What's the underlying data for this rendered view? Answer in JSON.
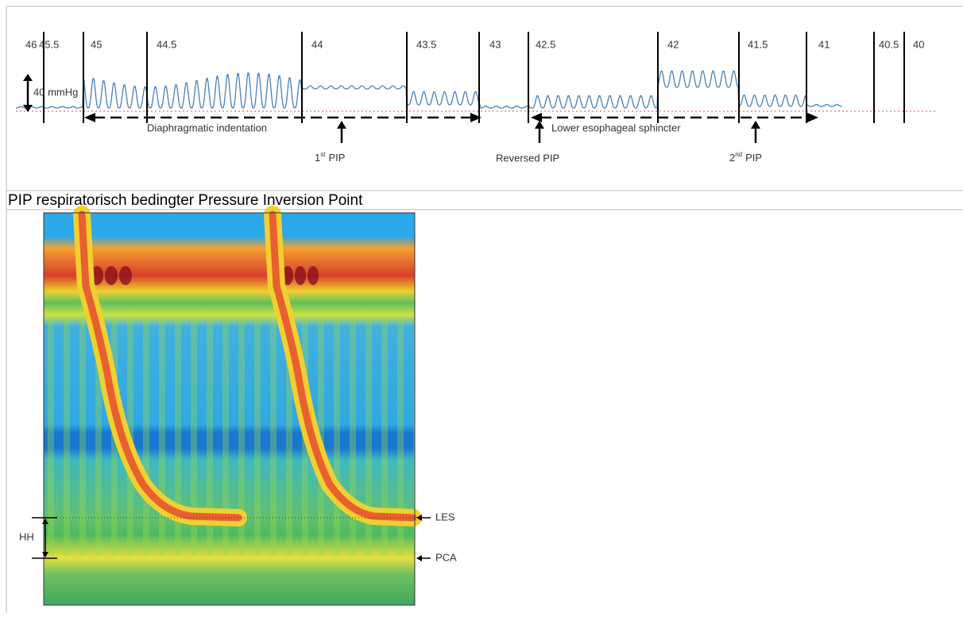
{
  "tracing": {
    "scale_labels": [
      "46",
      "45.5",
      "45",
      "44.5",
      "44",
      "43.5",
      "43",
      "42.5",
      "42",
      "41.5",
      "41",
      "40.5",
      "40"
    ],
    "amplitude_label": "40 mmHg",
    "annotations": {
      "diaphragmatic": "Diaphragmatic indentation",
      "les": "Lower esophageal sphincter",
      "first_pip": {
        "number": "1",
        "suffix": "st",
        "text": "PIP"
      },
      "reversed_pip": "Reversed PIP",
      "second_pip": {
        "number": "2",
        "suffix": "nd",
        "text": "PIP"
      }
    }
  },
  "caption": "PIP respiratorisch bedingter Pressure Inversion Point",
  "heatmap": {
    "labels": {
      "les": "LES",
      "pca": "PCA",
      "hh": "HH"
    }
  }
}
